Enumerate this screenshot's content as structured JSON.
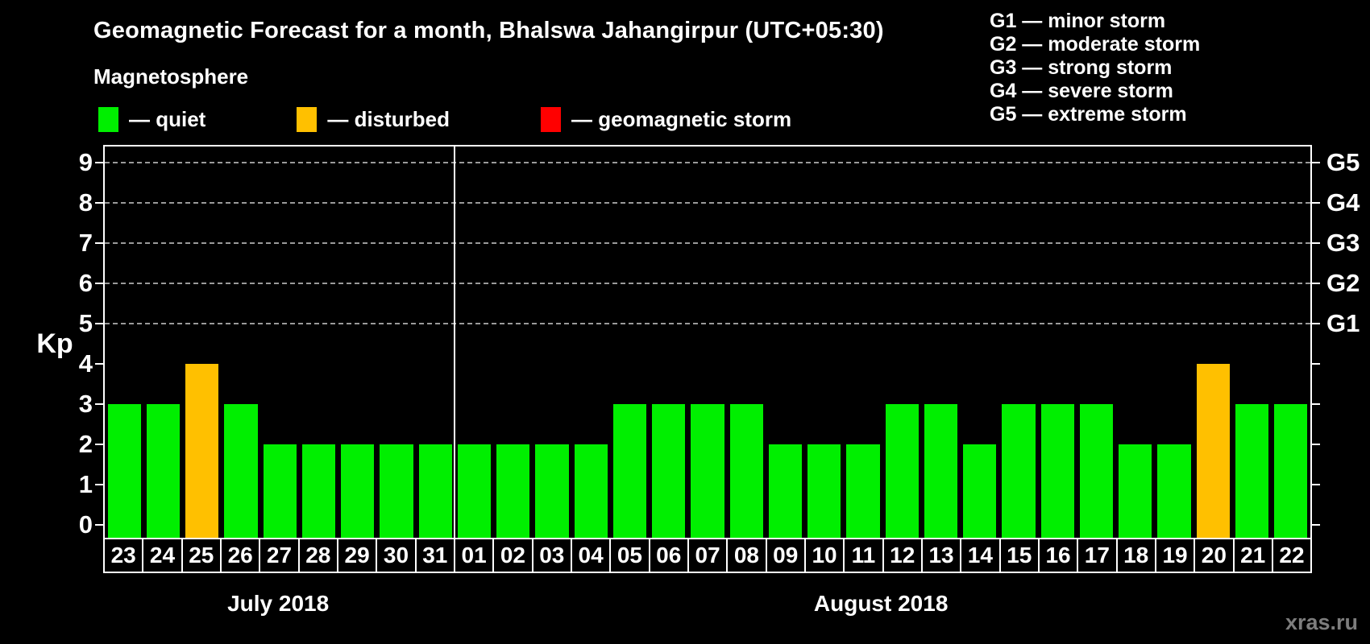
{
  "title": "Geomagnetic Forecast for a month, Bhalswa Jahangirpur (UTC+05:30)",
  "subtitle": "Magnetosphere",
  "legend": {
    "items": [
      {
        "label": "— quiet",
        "state": "quiet",
        "color": "#00ef00"
      },
      {
        "label": "— disturbed",
        "state": "disturbed",
        "color": "#ffc000"
      },
      {
        "label": "— geomagnetic storm",
        "state": "storm",
        "color": "#ff0000"
      }
    ]
  },
  "g_legend": [
    "G1 — minor storm",
    "G2 — moderate storm",
    "G3 — strong storm",
    "G4 — severe storm",
    "G5 — extreme storm"
  ],
  "axis": {
    "ylabel": "Kp",
    "yticks": [
      "0",
      "1",
      "2",
      "3",
      "4",
      "5",
      "6",
      "7",
      "8",
      "9"
    ],
    "right_labels": {
      "5": "G1",
      "6": "G2",
      "7": "G3",
      "8": "G4",
      "9": "G5"
    }
  },
  "months": [
    {
      "label": "July 2018",
      "days": 9
    },
    {
      "label": "August 2018",
      "days": 22
    }
  ],
  "watermark": "xras.ru",
  "chart_data": {
    "type": "bar",
    "title": "Geomagnetic Forecast for a month, Bhalswa Jahangirpur (UTC+05:30)",
    "xlabel": "",
    "ylabel": "Kp",
    "ylim": [
      -0.4,
      9.4
    ],
    "grid_levels_kp": [
      5,
      6,
      7,
      8,
      9
    ],
    "legend_position": "top-left",
    "colors": {
      "quiet": "#00ef00",
      "disturbed": "#ffc000",
      "storm": "#ff0000"
    },
    "bars": [
      {
        "day": "23",
        "month": "July 2018",
        "kp": 3,
        "state": "quiet"
      },
      {
        "day": "24",
        "month": "July 2018",
        "kp": 3,
        "state": "quiet"
      },
      {
        "day": "25",
        "month": "July 2018",
        "kp": 4,
        "state": "disturbed"
      },
      {
        "day": "26",
        "month": "July 2018",
        "kp": 3,
        "state": "quiet"
      },
      {
        "day": "27",
        "month": "July 2018",
        "kp": 2,
        "state": "quiet"
      },
      {
        "day": "28",
        "month": "July 2018",
        "kp": 2,
        "state": "quiet"
      },
      {
        "day": "29",
        "month": "July 2018",
        "kp": 2,
        "state": "quiet"
      },
      {
        "day": "30",
        "month": "July 2018",
        "kp": 2,
        "state": "quiet"
      },
      {
        "day": "31",
        "month": "July 2018",
        "kp": 2,
        "state": "quiet"
      },
      {
        "day": "01",
        "month": "August 2018",
        "kp": 2,
        "state": "quiet"
      },
      {
        "day": "02",
        "month": "August 2018",
        "kp": 2,
        "state": "quiet"
      },
      {
        "day": "03",
        "month": "August 2018",
        "kp": 2,
        "state": "quiet"
      },
      {
        "day": "04",
        "month": "August 2018",
        "kp": 2,
        "state": "quiet"
      },
      {
        "day": "05",
        "month": "August 2018",
        "kp": 3,
        "state": "quiet"
      },
      {
        "day": "06",
        "month": "August 2018",
        "kp": 3,
        "state": "quiet"
      },
      {
        "day": "07",
        "month": "August 2018",
        "kp": 3,
        "state": "quiet"
      },
      {
        "day": "08",
        "month": "August 2018",
        "kp": 3,
        "state": "quiet"
      },
      {
        "day": "09",
        "month": "August 2018",
        "kp": 2,
        "state": "quiet"
      },
      {
        "day": "10",
        "month": "August 2018",
        "kp": 2,
        "state": "quiet"
      },
      {
        "day": "11",
        "month": "August 2018",
        "kp": 2,
        "state": "quiet"
      },
      {
        "day": "12",
        "month": "August 2018",
        "kp": 3,
        "state": "quiet"
      },
      {
        "day": "13",
        "month": "August 2018",
        "kp": 3,
        "state": "quiet"
      },
      {
        "day": "14",
        "month": "August 2018",
        "kp": 2,
        "state": "quiet"
      },
      {
        "day": "15",
        "month": "August 2018",
        "kp": 3,
        "state": "quiet"
      },
      {
        "day": "16",
        "month": "August 2018",
        "kp": 3,
        "state": "quiet"
      },
      {
        "day": "17",
        "month": "August 2018",
        "kp": 3,
        "state": "quiet"
      },
      {
        "day": "18",
        "month": "August 2018",
        "kp": 2,
        "state": "quiet"
      },
      {
        "day": "19",
        "month": "August 2018",
        "kp": 2,
        "state": "quiet"
      },
      {
        "day": "20",
        "month": "August 2018",
        "kp": 4,
        "state": "disturbed"
      },
      {
        "day": "21",
        "month": "August 2018",
        "kp": 3,
        "state": "quiet"
      },
      {
        "day": "22",
        "month": "August 2018",
        "kp": 3,
        "state": "quiet"
      }
    ]
  }
}
